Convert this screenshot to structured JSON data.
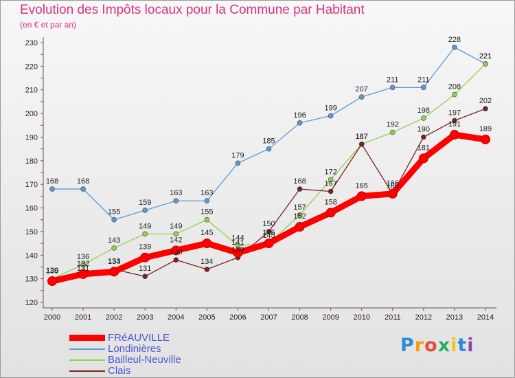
{
  "title": "Evolution des Impôts locaux pour la Commune par Habitant",
  "subtitle": "(en € et par an)",
  "brand": "Proxiti",
  "chart_data": {
    "type": "line",
    "title": "Evolution des Impôts locaux pour la Commune par Habitant",
    "subtitle": "(en € et par an)",
    "xlabel": "",
    "ylabel": "",
    "x": [
      "2000",
      "2001",
      "2002",
      "2003",
      "2004",
      "2005",
      "2006",
      "2007",
      "2008",
      "2009",
      "2010",
      "2011",
      "2012",
      "2013",
      "2014"
    ],
    "ylim": [
      120,
      230
    ],
    "yticks": [
      120,
      130,
      140,
      150,
      160,
      170,
      180,
      190,
      200,
      210,
      220,
      230
    ],
    "grid": false,
    "legend_position": "bottom-left",
    "series": [
      {
        "name": "FRéAUVILLE",
        "color": "#ff0000",
        "values": [
          129,
          132,
          133,
          139,
          142,
          145,
          141,
          145,
          152,
          158,
          165,
          166,
          181,
          191,
          189
        ]
      },
      {
        "name": "Londinières",
        "color": "#5b9bd5",
        "values": [
          168,
          168,
          155,
          159,
          163,
          163,
          179,
          185,
          196,
          199,
          207,
          211,
          211,
          228,
          221
        ]
      },
      {
        "name": "Bailleul-Neuville",
        "color": "#8fd14f",
        "values": [
          130,
          136,
          143,
          149,
          149,
          155,
          144,
          145,
          157,
          172,
          187,
          192,
          198,
          208,
          221
        ]
      },
      {
        "name": "Clais",
        "color": "#7a2020",
        "values": [
          130,
          131,
          134,
          131,
          138,
          134,
          139,
          150,
          168,
          167,
          187,
          166,
          190,
          197,
          202
        ]
      }
    ]
  }
}
